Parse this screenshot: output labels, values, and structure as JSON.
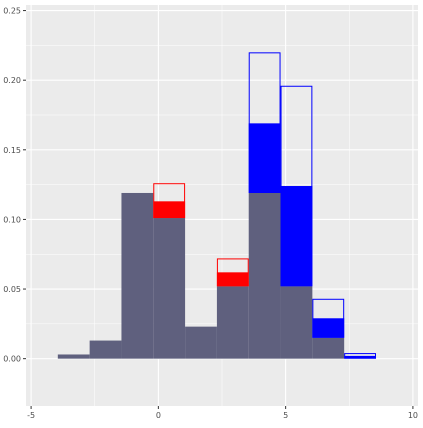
{
  "colors": {
    "panel_background": "#ebebeb",
    "grid": "#ffffff",
    "axis_text": "#4d4d4d",
    "base_fill": "#5f607e",
    "red": "#ff0000",
    "blue": "#0000ff"
  },
  "chart_data": {
    "type": "bar",
    "title": "",
    "xlabel": "",
    "ylabel": "",
    "xlim": [
      -5.2,
      10.2
    ],
    "ylim": [
      -0.034,
      0.254
    ],
    "x_ticks": [
      {
        "value": -5,
        "label": "-5"
      },
      {
        "value": 0,
        "label": "0"
      },
      {
        "value": 5,
        "label": "5"
      },
      {
        "value": 10,
        "label": "10"
      }
    ],
    "y_ticks": [
      {
        "value": 0.0,
        "label": "0.00"
      },
      {
        "value": 0.05,
        "label": "0.05"
      },
      {
        "value": 0.1,
        "label": "0.10"
      },
      {
        "value": 0.15,
        "label": "0.15"
      },
      {
        "value": 0.2,
        "label": "0.20"
      },
      {
        "value": 0.25,
        "label": "0.25"
      }
    ],
    "grid": true,
    "legend": "none",
    "base_histogram": {
      "fill": "#5f607e",
      "bins": [
        {
          "x0": -3.95,
          "x1": -2.7,
          "y": 0.003
        },
        {
          "x0": -2.7,
          "x1": -1.45,
          "y": 0.013
        },
        {
          "x0": -1.45,
          "x1": -0.2,
          "y": 0.119
        },
        {
          "x0": -0.2,
          "x1": 1.05,
          "y": 0.101
        },
        {
          "x0": 1.05,
          "x1": 2.3,
          "y": 0.023
        },
        {
          "x0": 2.3,
          "x1": 3.55,
          "y": 0.052
        },
        {
          "x0": 3.55,
          "x1": 4.8,
          "y": 0.119
        },
        {
          "x0": 4.8,
          "x1": 6.05,
          "y": 0.052
        },
        {
          "x0": 6.05,
          "x1": 7.3,
          "y": 0.015
        }
      ]
    },
    "red_series": {
      "color": "#ff0000",
      "bars": [
        {
          "x0": -0.2,
          "x1": 1.05,
          "filled_top": 0.113,
          "outline_top": 0.126
        },
        {
          "x0": 2.3,
          "x1": 3.55,
          "filled_top": 0.062,
          "outline_top": 0.072
        }
      ]
    },
    "blue_series": {
      "color": "#0000ff",
      "bars": [
        {
          "x0": 3.55,
          "x1": 4.8,
          "filled_top": 0.169,
          "outline_top": 0.22
        },
        {
          "x0": 4.8,
          "x1": 6.05,
          "filled_top": 0.124,
          "outline_top": 0.196
        },
        {
          "x0": 6.05,
          "x1": 7.3,
          "filled_top": 0.029,
          "outline_top": 0.043
        },
        {
          "x0": 7.3,
          "x1": 8.55,
          "filled_top": 0.002,
          "outline_top": 0.004
        }
      ]
    }
  }
}
